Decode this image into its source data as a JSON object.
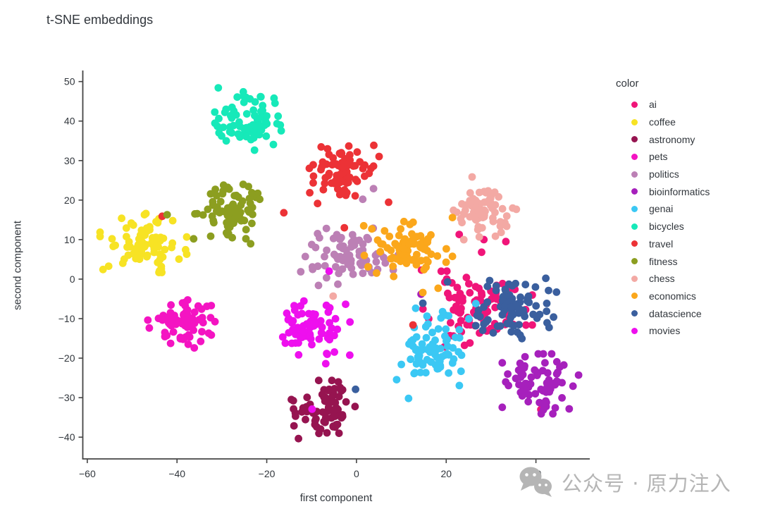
{
  "title": "t-SNE embeddings",
  "text_color": "#31363c",
  "axis_color": "#444444",
  "background": "#ffffff",
  "watermark": {
    "icon": "wechat-icon",
    "text": "公众号 · 原力注入",
    "color": "#b5b5b5"
  },
  "chart_data": {
    "type": "scatter",
    "title": "t-SNE embeddings",
    "xlabel": "first component",
    "ylabel": "second component",
    "legend_title": "color",
    "legend_position": "right",
    "grid": false,
    "xlim": [
      -61,
      52
    ],
    "ylim": [
      -45.5,
      52.8
    ],
    "x_ticks": [
      -60,
      -40,
      -20,
      0,
      20,
      40
    ],
    "y_ticks": [
      -40,
      -30,
      -20,
      -10,
      0,
      10,
      20,
      30,
      40,
      50
    ],
    "marker_radius": 5.4,
    "series": [
      {
        "name": "ai",
        "color": "#F01579",
        "cluster": {
          "cx": 27,
          "cy": -7.5,
          "sx": 5.3,
          "sy": 4.2,
          "n": 82,
          "seed": 11
        },
        "outliers": [
          [
            41.1,
            -33
          ],
          [
            28.4,
            10
          ],
          [
            33.3,
            9.5
          ],
          [
            27.9,
            6.8
          ],
          [
            22.9,
            11.3
          ],
          [
            14.5,
            2.3
          ]
        ]
      },
      {
        "name": "coffee",
        "color": "#F7E324",
        "cluster": {
          "cx": -47.5,
          "cy": 9.5,
          "sx": 4.2,
          "sy": 3.4,
          "n": 80,
          "seed": 22
        },
        "outliers": []
      },
      {
        "name": "astronomy",
        "color": "#961450",
        "cluster": {
          "cx": -7,
          "cy": -33,
          "sx": 3.4,
          "sy": 3.2,
          "n": 78,
          "seed": 33
        },
        "outliers": []
      },
      {
        "name": "pets",
        "color": "#F414C2",
        "cluster": {
          "cx": -39,
          "cy": -11,
          "sx": 3.9,
          "sy": 3.1,
          "n": 68,
          "seed": 44
        },
        "outliers": []
      },
      {
        "name": "politics",
        "color": "#BC80B5",
        "cluster": {
          "cx": -3,
          "cy": 6,
          "sx": 4.1,
          "sy": 3.3,
          "n": 72,
          "seed": 55
        },
        "outliers": [
          [
            3.8,
            22.9
          ],
          [
            1.4,
            20.2
          ],
          [
            9.3,
            6.1
          ],
          [
            8.2,
            2.3
          ]
        ]
      },
      {
        "name": "bioinformatics",
        "color": "#A620BC",
        "cluster": {
          "cx": 41,
          "cy": -26.5,
          "sx": 3.7,
          "sy": 3.3,
          "n": 72,
          "seed": 66
        },
        "outliers": [
          [
            14.4,
            -3.8
          ]
        ]
      },
      {
        "name": "genai",
        "color": "#3BC8F4",
        "cluster": {
          "cx": 17,
          "cy": -17.5,
          "sx": 3.5,
          "sy": 4.4,
          "n": 76,
          "seed": 77
        },
        "outliers": [
          [
            10,
            -21.6
          ],
          [
            26.6,
            -6.2
          ],
          [
            11.6,
            -30.2
          ]
        ]
      },
      {
        "name": "bicycles",
        "color": "#16E9B9",
        "cluster": {
          "cx": -24,
          "cy": 40.5,
          "sx": 3.3,
          "sy": 3.5,
          "n": 80,
          "seed": 88
        },
        "outliers": []
      },
      {
        "name": "travel",
        "color": "#EC3236",
        "cluster": {
          "cx": -2.5,
          "cy": 26.5,
          "sx": 4.2,
          "sy": 3.2,
          "n": 80,
          "seed": 99
        },
        "outliers": [
          [
            -16.2,
            16.8
          ],
          [
            -2.7,
            13
          ],
          [
            12.6,
            -11.6
          ],
          [
            -43.3,
            15.9
          ]
        ]
      },
      {
        "name": "fitness",
        "color": "#8C9E20",
        "cluster": {
          "cx": -27.5,
          "cy": 17,
          "sx": 3.7,
          "sy": 3.5,
          "n": 78,
          "seed": 110
        },
        "outliers": [
          [
            -42.2,
            16.3
          ],
          [
            -36.3,
            10.2
          ]
        ]
      },
      {
        "name": "chess",
        "color": "#F3A9A4",
        "cluster": {
          "cx": 28.5,
          "cy": 18.5,
          "sx": 3.1,
          "sy": 3.7,
          "n": 72,
          "seed": 121
        },
        "outliers": [
          [
            -5.2,
            -4.3
          ]
        ]
      },
      {
        "name": "economics",
        "color": "#FBA71B",
        "cluster": {
          "cx": 11.5,
          "cy": 8,
          "sx": 4.3,
          "sy": 3.3,
          "n": 78,
          "seed": 132
        },
        "outliers": [
          [
            18.2,
            -2.3
          ],
          [
            14.8,
            -3.4
          ]
        ]
      },
      {
        "name": "datascience",
        "color": "#3A5F9E",
        "cluster": {
          "cx": 36.5,
          "cy": -7,
          "sx": 4.3,
          "sy": 3.5,
          "n": 76,
          "seed": 143
        },
        "outliers": [
          [
            42.2,
            0.2
          ],
          [
            -0.2,
            -27.9
          ],
          [
            20.3,
            -0.7
          ],
          [
            14.8,
            -6.1
          ]
        ]
      },
      {
        "name": "movies",
        "color": "#EE0FEE",
        "cluster": {
          "cx": -9.5,
          "cy": -13,
          "sx": 3.5,
          "sy": 3.7,
          "n": 72,
          "seed": 154
        },
        "outliers": [
          [
            -6.1,
            2
          ],
          [
            -9.9,
            -32.9
          ]
        ]
      }
    ]
  }
}
